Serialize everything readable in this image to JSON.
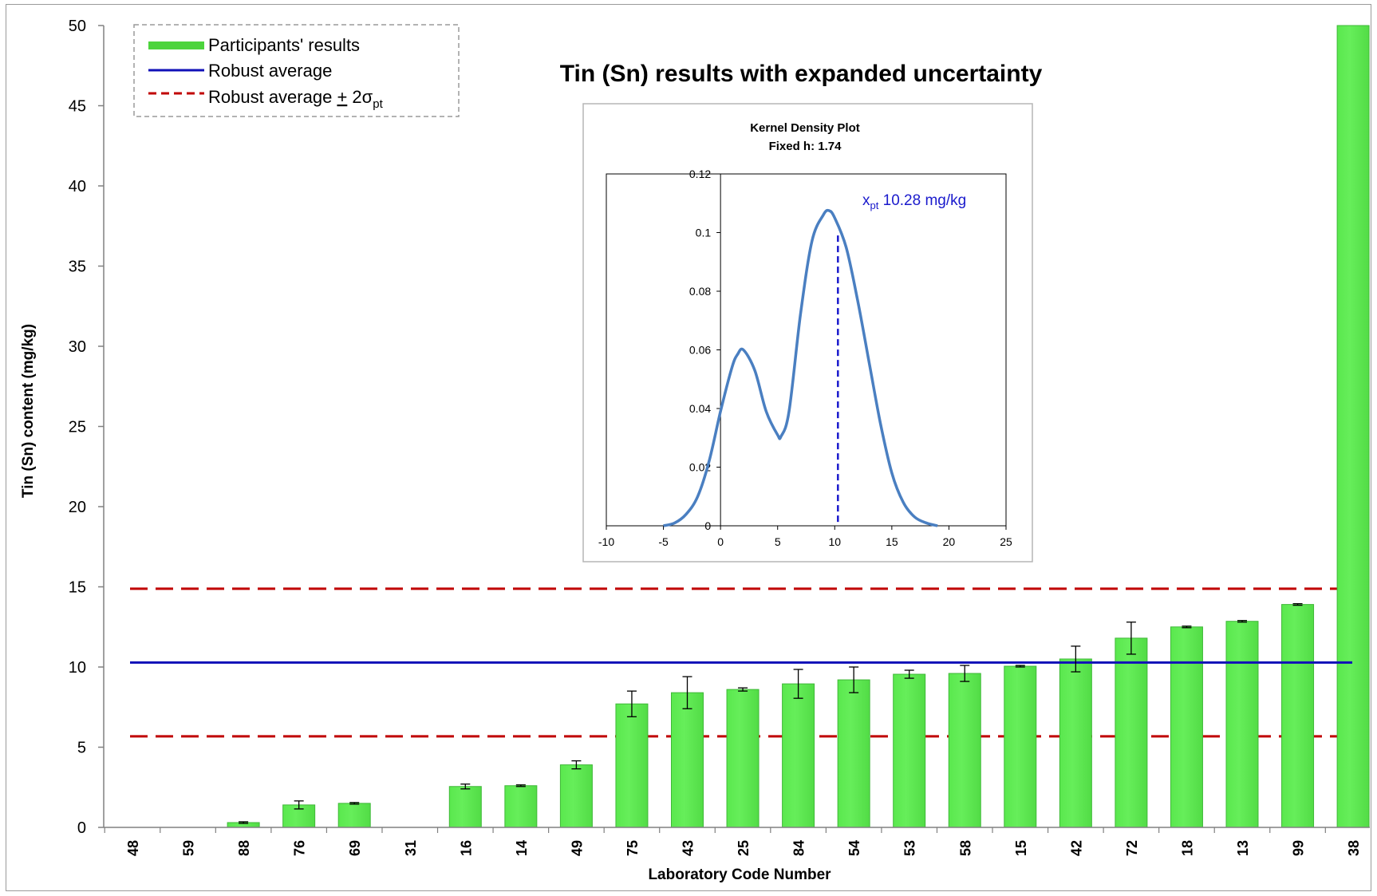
{
  "chart_data": [
    {
      "type": "bar",
      "title": "Tin (Sn)  results with expanded uncertainty",
      "xlabel": "Laboratory  Code Number",
      "ylabel": "Tin (Sn)  content (mg/kg)",
      "ylim": [
        0,
        50
      ],
      "yticks": [
        "0",
        "5",
        "10",
        "15",
        "20",
        "25",
        "30",
        "35",
        "40",
        "45",
        "50"
      ],
      "categories": [
        "48",
        "59",
        "88",
        "76",
        "69",
        "31",
        "16",
        "14",
        "49",
        "75",
        "43",
        "25",
        "84",
        "54",
        "53",
        "58",
        "15",
        "42",
        "72",
        "18",
        "13",
        "99",
        "38"
      ],
      "values": [
        0,
        0,
        0.3,
        1.4,
        1.5,
        0,
        2.55,
        2.6,
        3.9,
        7.7,
        8.4,
        8.6,
        8.95,
        9.2,
        9.55,
        9.6,
        10.05,
        10.5,
        11.8,
        12.5,
        12.85,
        13.9,
        50
      ],
      "errors": [
        0,
        0,
        0.05,
        0.25,
        0.05,
        0,
        0.15,
        0.05,
        0.25,
        0.8,
        1.0,
        0.1,
        0.9,
        0.8,
        0.25,
        0.5,
        0.05,
        0.8,
        1.0,
        0.05,
        0.05,
        0.05,
        0
      ],
      "robust_average": 10.28,
      "lower_limit": 5.68,
      "upper_limit": 14.88,
      "grid": false,
      "legend": {
        "position": "top-left",
        "entries": [
          {
            "label": "Participants' results",
            "color": "#4cd43c",
            "style": "bar"
          },
          {
            "label": "Robust average",
            "color": "#1010b8",
            "style": "solid"
          },
          {
            "label": "Robust average ",
            "pm": "+",
            "suffix": " 2σ",
            "sub": "pt",
            "color": "#c00000",
            "style": "dashed"
          }
        ]
      },
      "colors": {
        "bar": "#66ee5a",
        "bar_edge": "#3fb838",
        "robust": "#1010b8",
        "limits": "#c00000"
      }
    },
    {
      "type": "line",
      "title": "Kernel Density Plot",
      "subtitle": "Fixed h: 1.74",
      "xlim": [
        -10,
        25
      ],
      "ylim": [
        0,
        0.12
      ],
      "xticks": [
        "-10",
        "-5",
        "0",
        "5",
        "10",
        "15",
        "20",
        "25"
      ],
      "yticks": [
        "0",
        "0.02",
        "0.04",
        "0.06",
        "0.08",
        "0.1",
        "0.12"
      ],
      "annotation": {
        "prefix": "x",
        "sub": "pt",
        "text": " 10.28 mg/kg",
        "x": 10.28,
        "color": "#1a1acc"
      },
      "x": [
        -5,
        -4,
        -3,
        -2,
        -1,
        0,
        1,
        1.5,
        2,
        3,
        4,
        5,
        5.3,
        6,
        7,
        8,
        9,
        9.5,
        10,
        11,
        12,
        13,
        14,
        15,
        16,
        17,
        18,
        19
      ],
      "y": [
        0,
        0.001,
        0.004,
        0.01,
        0.022,
        0.039,
        0.054,
        0.0585,
        0.06,
        0.053,
        0.039,
        0.031,
        0.0305,
        0.039,
        0.072,
        0.097,
        0.106,
        0.1075,
        0.105,
        0.095,
        0.077,
        0.056,
        0.035,
        0.018,
        0.008,
        0.003,
        0.001,
        0
      ],
      "colors": {
        "line": "#4a7fc1",
        "marker": "#1a1acc"
      }
    }
  ]
}
